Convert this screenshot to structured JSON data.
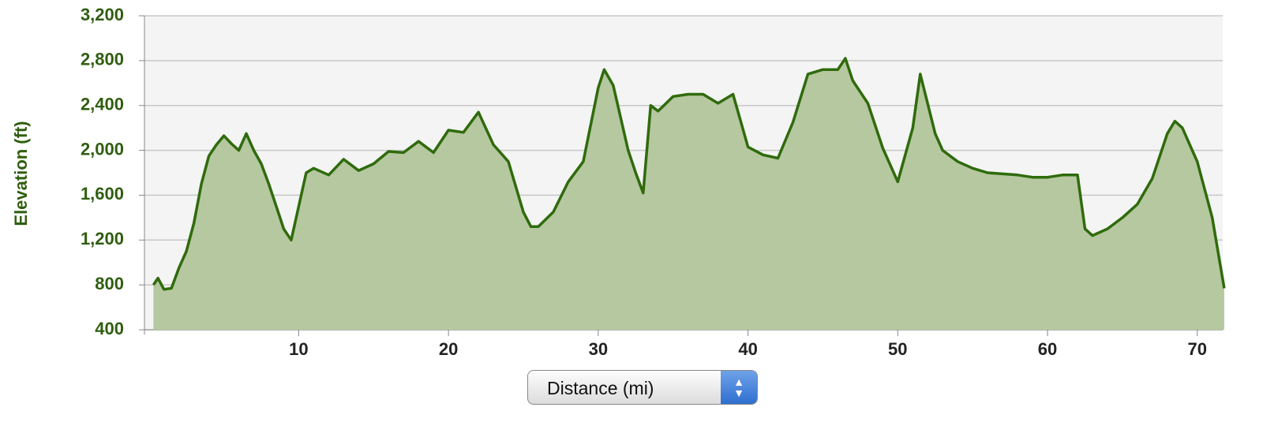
{
  "chart_data": {
    "type": "area",
    "ylabel": "Elevation (ft)",
    "xlabel": "Distance (mi)",
    "x": [
      0.3,
      0.6,
      1,
      1.5,
      2,
      2.5,
      3,
      3.5,
      4,
      4.5,
      5,
      5.5,
      6,
      6.5,
      7,
      7.5,
      8,
      8.5,
      9,
      9.5,
      10,
      10.5,
      11,
      12,
      13,
      14,
      15,
      16,
      17,
      18,
      19,
      20,
      21,
      22,
      23,
      24,
      25,
      25.5,
      26,
      27,
      28,
      29,
      30,
      30.4,
      31,
      32,
      32.5,
      33,
      33.5,
      34,
      35,
      36,
      37,
      38,
      39,
      40,
      41,
      42,
      43,
      44,
      45,
      46,
      46.5,
      47,
      48,
      49,
      50,
      51,
      51.5,
      52.5,
      53,
      54,
      55,
      56,
      57,
      58,
      59,
      60,
      61,
      62,
      62.5,
      63,
      64,
      65,
      66,
      67,
      68,
      68.5,
      69,
      70,
      71,
      71.8
    ],
    "values": [
      800,
      860,
      760,
      770,
      950,
      1100,
      1350,
      1700,
      1950,
      2050,
      2130,
      2060,
      2000,
      2150,
      2000,
      1880,
      1700,
      1500,
      1300,
      1200,
      1500,
      1800,
      1840,
      1780,
      1920,
      1820,
      1880,
      1990,
      1980,
      2080,
      1980,
      2180,
      2160,
      2340,
      2050,
      1900,
      1450,
      1320,
      1320,
      1450,
      1720,
      1900,
      2560,
      2720,
      2580,
      2000,
      1800,
      1620,
      2400,
      2350,
      2480,
      2500,
      2500,
      2420,
      2500,
      2030,
      1960,
      1930,
      2250,
      2680,
      2720,
      2720,
      2820,
      2620,
      2420,
      2020,
      1720,
      2200,
      2680,
      2150,
      2000,
      1900,
      1840,
      1800,
      1790,
      1780,
      1760,
      1760,
      1780,
      1780,
      1300,
      1240,
      1300,
      1400,
      1520,
      1750,
      2150,
      2260,
      2200,
      1900,
      1400,
      770
    ],
    "line_color": "#2f6b0c",
    "fill_color": "#b6c8a0",
    "xlim": [
      -0.3,
      71.7
    ],
    "ylim": [
      400,
      3200
    ],
    "xticks": [
      10,
      20,
      30,
      40,
      50,
      60,
      70
    ],
    "yticks": [
      400,
      800,
      {
        "value": 1200,
        "label": "1,200"
      },
      {
        "value": 1600,
        "label": "1,600"
      },
      {
        "value": 2000,
        "label": "2,000"
      },
      {
        "value": 2400,
        "label": "2,400"
      },
      {
        "value": 2800,
        "label": "2,800"
      },
      {
        "value": 3200,
        "label": "3,200"
      }
    ],
    "grid": true
  }
}
